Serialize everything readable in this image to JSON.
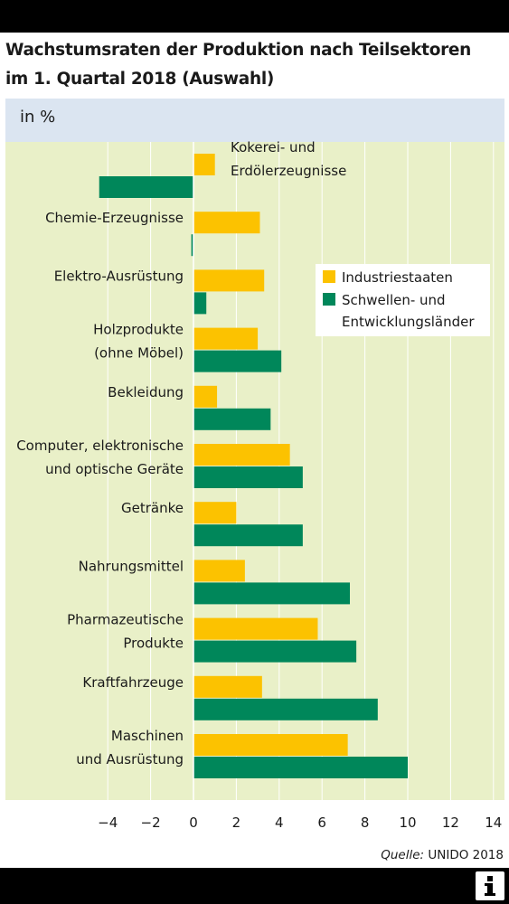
{
  "title_lines": [
    "Wachstumsraten der Produktion nach Teilsektoren",
    "im 1. Quartal 2018 (Auswahl)"
  ],
  "unit": "in %",
  "source": {
    "prefix": "Quelle:",
    "name": "UNIDO 2018"
  },
  "colors": {
    "industriestaaten": "#fcc200",
    "schwellen": "#00875a",
    "plot_background": "#e9f0c8",
    "unit_band": "#dbe5f1"
  },
  "icons": {
    "info": "info-icon"
  },
  "chart_data": {
    "type": "bar",
    "orientation": "horizontal",
    "title": "Wachstumsraten der Produktion nach Teilsektoren im 1. Quartal 2018 (Auswahl)",
    "xlabel": "in %",
    "ylabel": "",
    "xlim": [
      -5,
      14
    ],
    "xticks": [
      -4,
      -2,
      0,
      2,
      4,
      6,
      8,
      10,
      12,
      14
    ],
    "tick_labels": [
      "−4",
      "−2",
      "0",
      "2",
      "4",
      "6",
      "8",
      "10",
      "12",
      "14"
    ],
    "grid": true,
    "legend_position": "top-right",
    "categories": [
      [
        "Kokerei- und",
        "Erdölerzeugnisse"
      ],
      [
        "Chemie-Erzeugnisse"
      ],
      [
        "Elektro-Ausrüstung"
      ],
      [
        "Holzprodukte",
        "(ohne Möbel)"
      ],
      [
        "Bekleidung"
      ],
      [
        "Computer, elektronische",
        "und optische Geräte"
      ],
      [
        "Getränke"
      ],
      [
        "Nahrungsmittel"
      ],
      [
        "Pharmazeutische",
        "Produkte"
      ],
      [
        "Kraftfahrzeuge"
      ],
      [
        "Maschinen",
        "und Ausrüstung"
      ]
    ],
    "series": [
      {
        "name": "Industriestaaten",
        "values": [
          1.0,
          3.1,
          3.3,
          3.0,
          1.1,
          4.5,
          2.0,
          2.4,
          5.8,
          3.2,
          7.2
        ]
      },
      {
        "name": "Schwellen- und Entwicklungsländer",
        "values": [
          -4.4,
          -0.1,
          0.6,
          4.1,
          3.6,
          5.1,
          5.1,
          7.3,
          7.6,
          8.6,
          10.0
        ]
      }
    ],
    "legend": [
      "Industriestaaten",
      [
        "Schwellen- und",
        "Entwicklungsländer"
      ]
    ]
  }
}
